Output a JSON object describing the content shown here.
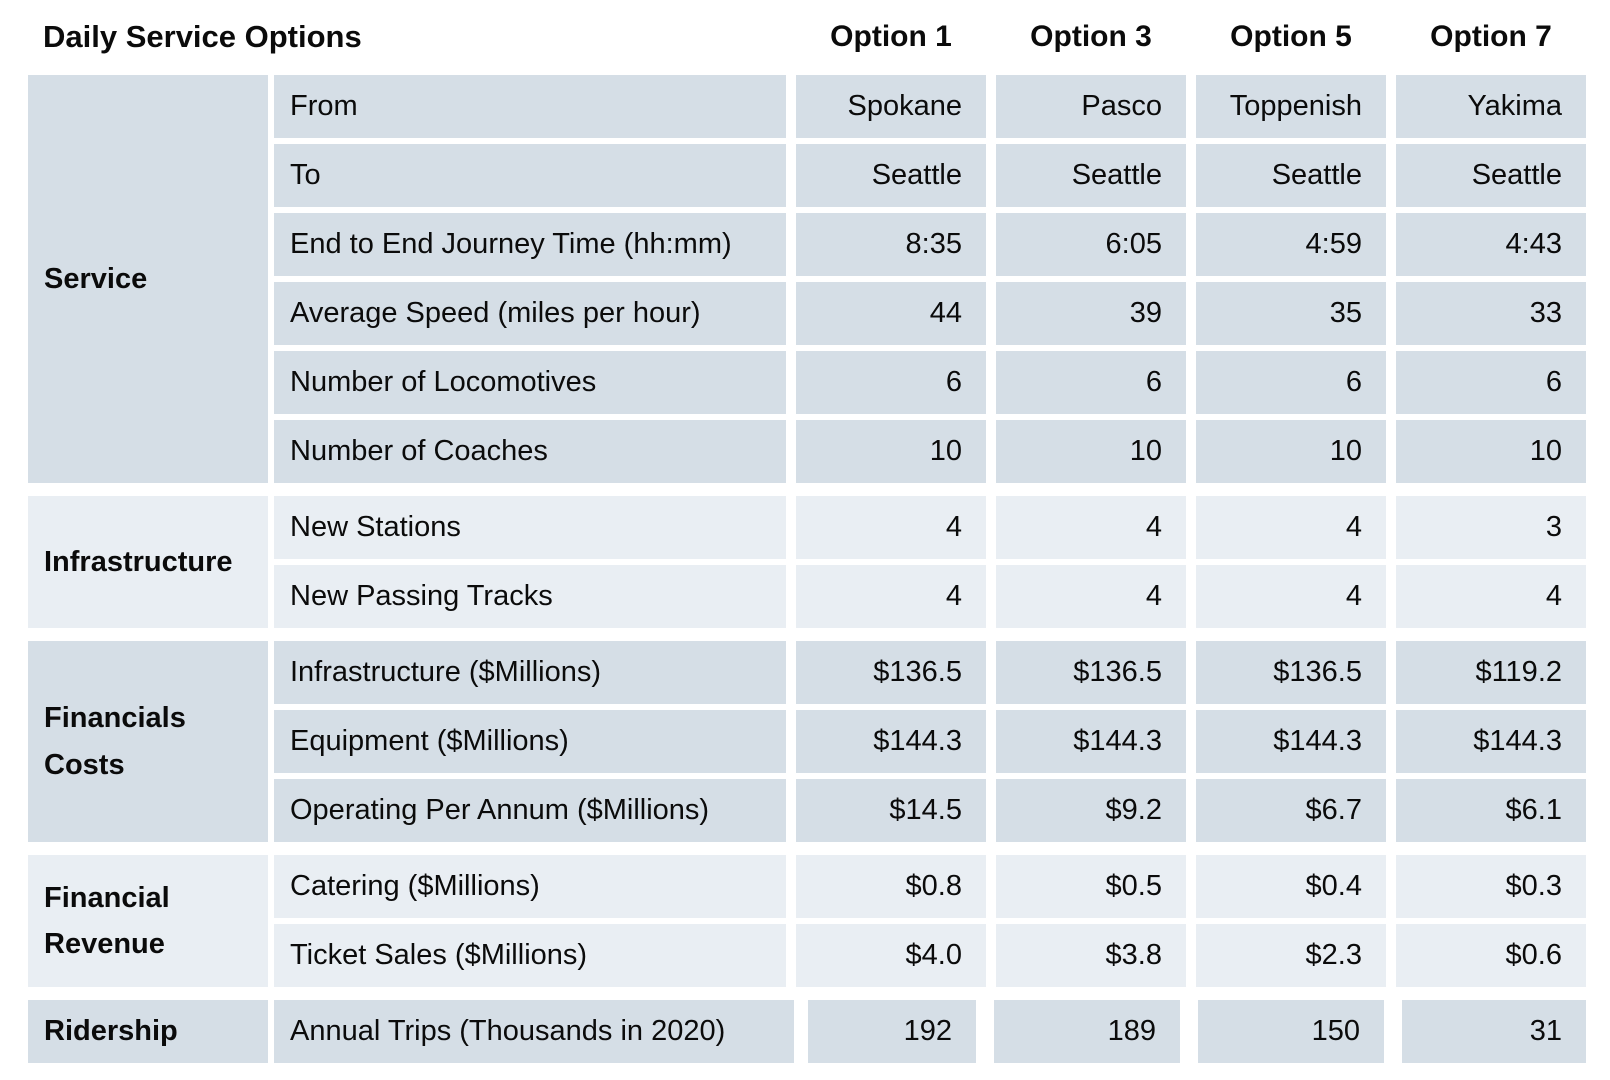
{
  "title": "Daily Service Options",
  "colors": {
    "section_dark": "#d5dee6",
    "section_light": "#e9eef3",
    "background": "#ffffff",
    "text": "#0b0b0b"
  },
  "chart_data": {
    "type": "table",
    "title": "Daily Service Options",
    "columns": [
      "Option 1",
      "Option 3",
      "Option 5",
      "Option 7"
    ],
    "sections": [
      {
        "group": "Service",
        "shade": "dark",
        "rows": [
          {
            "label": "From",
            "values": [
              "Spokane",
              "Pasco",
              "Toppenish",
              "Yakima"
            ]
          },
          {
            "label": "To",
            "values": [
              "Seattle",
              "Seattle",
              "Seattle",
              "Seattle"
            ]
          },
          {
            "label": "End to End Journey Time (hh:mm)",
            "values": [
              "8:35",
              "6:05",
              "4:59",
              "4:43"
            ]
          },
          {
            "label": "Average Speed (miles per hour)",
            "values": [
              "44",
              "39",
              "35",
              "33"
            ]
          },
          {
            "label": "Number of Locomotives",
            "values": [
              "6",
              "6",
              "6",
              "6"
            ]
          },
          {
            "label": "Number of Coaches",
            "values": [
              "10",
              "10",
              "10",
              "10"
            ]
          }
        ]
      },
      {
        "group": "Infrastructure",
        "shade": "light",
        "rows": [
          {
            "label": "New Stations",
            "values": [
              "4",
              "4",
              "4",
              "3"
            ]
          },
          {
            "label": "New Passing Tracks",
            "values": [
              "4",
              "4",
              "4",
              "4"
            ]
          }
        ]
      },
      {
        "group": "Financials Costs",
        "shade": "dark",
        "rows": [
          {
            "label": "Infrastructure ($Millions)",
            "values": [
              "$136.5",
              "$136.5",
              "$136.5",
              "$119.2"
            ]
          },
          {
            "label": "Equipment ($Millions)",
            "values": [
              "$144.3",
              "$144.3",
              "$144.3",
              "$144.3"
            ]
          },
          {
            "label": "Operating Per Annum ($Millions)",
            "values": [
              "$14.5",
              "$9.2",
              "$6.7",
              "$6.1"
            ]
          }
        ]
      },
      {
        "group": "Financial Revenue",
        "shade": "light",
        "rows": [
          {
            "label": "Catering ($Millions)",
            "values": [
              "$0.8",
              "$0.5",
              "$0.4",
              "$0.3"
            ]
          },
          {
            "label": "Ticket Sales ($Millions)",
            "values": [
              "$4.0",
              "$3.8",
              "$2.3",
              "$0.6"
            ]
          }
        ]
      },
      {
        "group": "Ridership",
        "shade": "dark",
        "variant": true,
        "rows": [
          {
            "label": "Annual Trips (Thousands in 2020)",
            "values": [
              "192",
              "189",
              "150",
              "31"
            ]
          }
        ]
      }
    ]
  }
}
